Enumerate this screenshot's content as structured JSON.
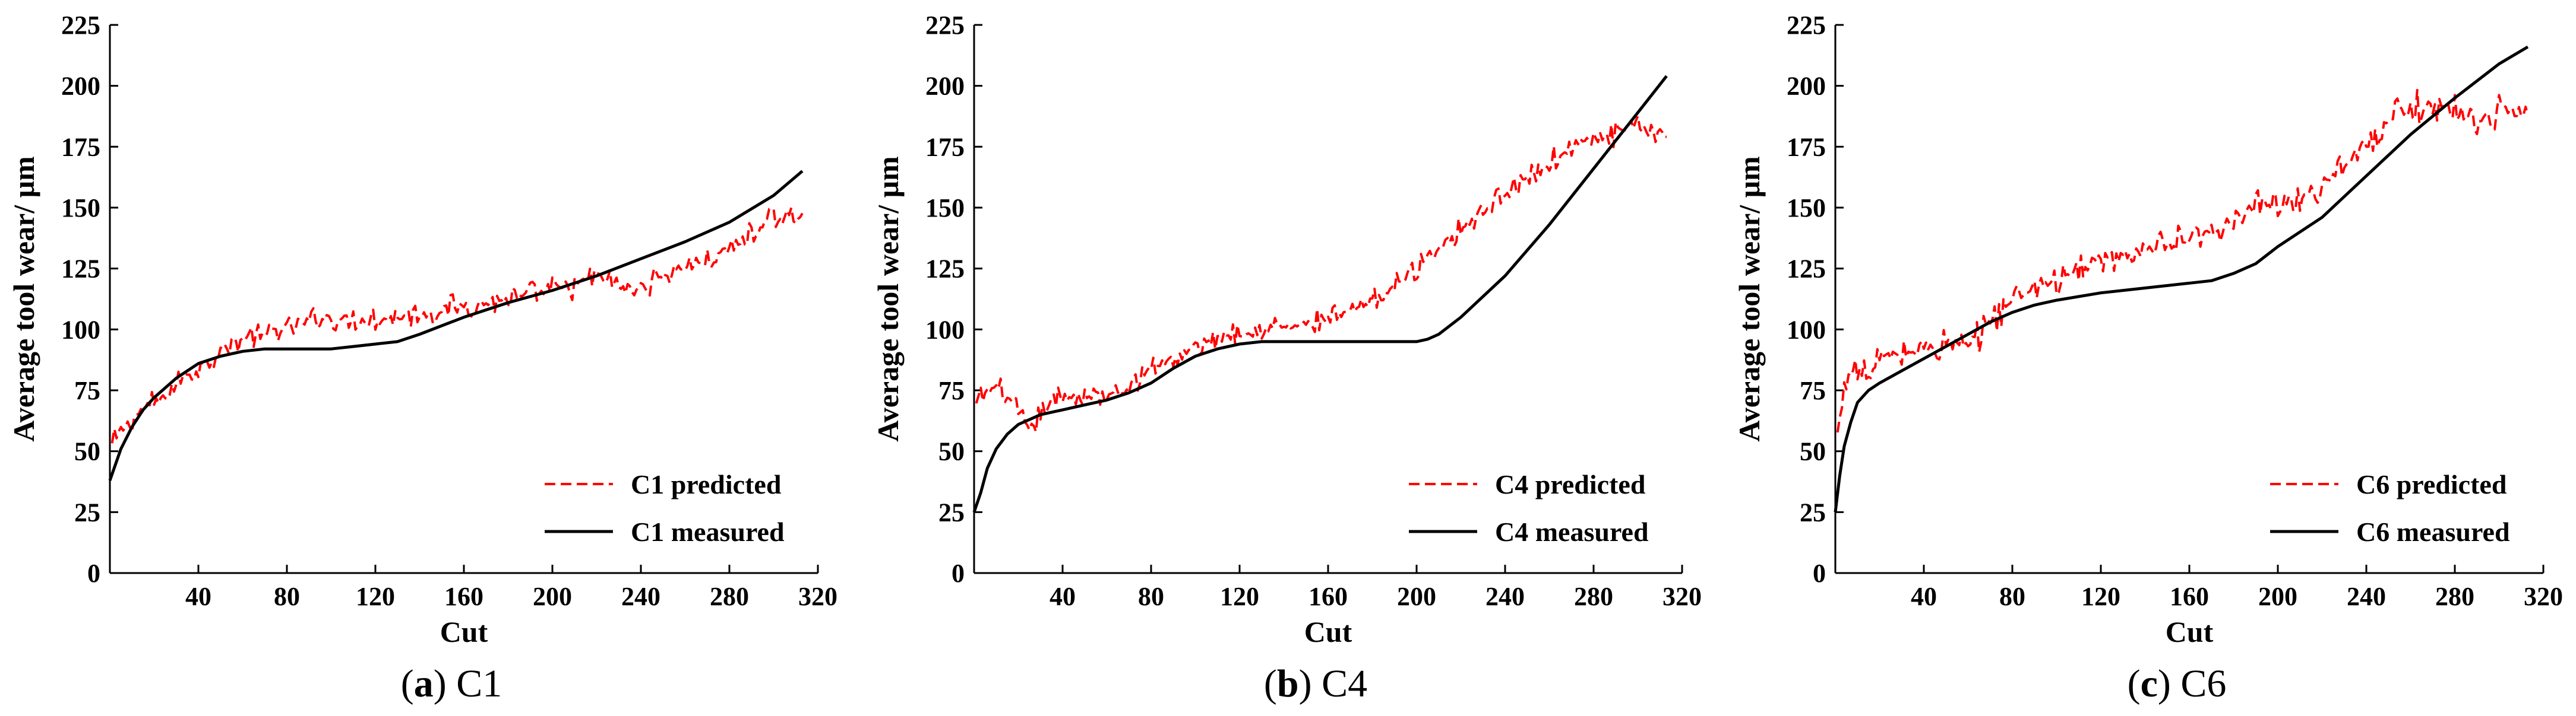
{
  "chart_data": [
    {
      "type": "line",
      "caption": {
        "letter": "a",
        "name": "C1"
      },
      "xlabel": "Cut",
      "ylabel": "Average tool wear/ μm",
      "xlim": [
        0,
        320
      ],
      "ylim": [
        0,
        225
      ],
      "xticks": [
        40,
        80,
        120,
        160,
        200,
        240,
        280,
        320
      ],
      "yticks": [
        0,
        25,
        50,
        75,
        100,
        125,
        150,
        175,
        200,
        225
      ],
      "legend_position": "bottom-right",
      "series": [
        {
          "name": "C1 predicted",
          "style": "dashed",
          "color": "#ff0000",
          "noise": 6,
          "points": [
            [
              1,
              52
            ],
            [
              5,
              58
            ],
            [
              10,
              63
            ],
            [
              15,
              67
            ],
            [
              20,
              70
            ],
            [
              25,
              72
            ],
            [
              30,
              78
            ],
            [
              35,
              82
            ],
            [
              40,
              84
            ],
            [
              45,
              88
            ],
            [
              50,
              92
            ],
            [
              55,
              93
            ],
            [
              60,
              96
            ],
            [
              65,
              98
            ],
            [
              70,
              98
            ],
            [
              75,
              99
            ],
            [
              80,
              101
            ],
            [
              90,
              103
            ],
            [
              100,
              105
            ],
            [
              110,
              104
            ],
            [
              120,
              104
            ],
            [
              130,
              105
            ],
            [
              140,
              106
            ],
            [
              150,
              108
            ],
            [
              160,
              110
            ],
            [
              170,
              111
            ],
            [
              180,
              112
            ],
            [
              190,
              114
            ],
            [
              200,
              116
            ],
            [
              210,
              118
            ],
            [
              220,
              122
            ],
            [
              230,
              118
            ],
            [
              235,
              115
            ],
            [
              240,
              118
            ],
            [
              250,
              122
            ],
            [
              260,
              126
            ],
            [
              270,
              128
            ],
            [
              280,
              133
            ],
            [
              290,
              139
            ],
            [
              300,
              145
            ],
            [
              310,
              145
            ],
            [
              313,
              148
            ]
          ]
        },
        {
          "name": "C1 measured",
          "style": "solid",
          "color": "#000000",
          "points": [
            [
              0,
              38
            ],
            [
              5,
              51
            ],
            [
              10,
              60
            ],
            [
              15,
              67
            ],
            [
              20,
              72
            ],
            [
              30,
              80
            ],
            [
              40,
              86
            ],
            [
              50,
              89
            ],
            [
              60,
              91
            ],
            [
              70,
              92
            ],
            [
              80,
              92
            ],
            [
              90,
              92
            ],
            [
              100,
              92
            ],
            [
              110,
              93
            ],
            [
              120,
              94
            ],
            [
              130,
              95
            ],
            [
              140,
              98
            ],
            [
              160,
              105
            ],
            [
              180,
              111
            ],
            [
              200,
              116
            ],
            [
              220,
              122
            ],
            [
              240,
              129
            ],
            [
              260,
              136
            ],
            [
              280,
              144
            ],
            [
              300,
              155
            ],
            [
              313,
              165
            ]
          ]
        }
      ]
    },
    {
      "type": "line",
      "caption": {
        "letter": "b",
        "name": "C4"
      },
      "xlabel": "Cut",
      "ylabel": "Average tool wear/ μm",
      "xlim": [
        0,
        320
      ],
      "ylim": [
        0,
        225
      ],
      "xticks": [
        40,
        80,
        120,
        160,
        200,
        240,
        280,
        320
      ],
      "yticks": [
        0,
        25,
        50,
        75,
        100,
        125,
        150,
        175,
        200,
        225
      ],
      "legend_position": "bottom-right",
      "series": [
        {
          "name": "C4 predicted",
          "style": "dashed",
          "color": "#ff0000",
          "noise": 6,
          "points": [
            [
              1,
              68
            ],
            [
              5,
              74
            ],
            [
              10,
              76
            ],
            [
              15,
              72
            ],
            [
              20,
              66
            ],
            [
              25,
              58
            ],
            [
              30,
              65
            ],
            [
              35,
              70
            ],
            [
              40,
              72
            ],
            [
              50,
              73
            ],
            [
              60,
              72
            ],
            [
              70,
              75
            ],
            [
              80,
              85
            ],
            [
              90,
              88
            ],
            [
              100,
              92
            ],
            [
              110,
              97
            ],
            [
              120,
              99
            ],
            [
              130,
              100
            ],
            [
              140,
              101
            ],
            [
              150,
              102
            ],
            [
              160,
              104
            ],
            [
              170,
              107
            ],
            [
              180,
              111
            ],
            [
              190,
              117
            ],
            [
              200,
              126
            ],
            [
              210,
              134
            ],
            [
              220,
              142
            ],
            [
              230,
              148
            ],
            [
              240,
              156
            ],
            [
              250,
              162
            ],
            [
              260,
              168
            ],
            [
              270,
              175
            ],
            [
              280,
              178
            ],
            [
              290,
              180
            ],
            [
              300,
              183
            ],
            [
              313,
              180
            ]
          ]
        },
        {
          "name": "C4 measured",
          "style": "solid",
          "color": "#000000",
          "points": [
            [
              0,
              25
            ],
            [
              3,
              33
            ],
            [
              6,
              43
            ],
            [
              10,
              51
            ],
            [
              15,
              57
            ],
            [
              20,
              61
            ],
            [
              30,
              65
            ],
            [
              40,
              67
            ],
            [
              50,
              69
            ],
            [
              60,
              71
            ],
            [
              70,
              74
            ],
            [
              80,
              78
            ],
            [
              90,
              84
            ],
            [
              100,
              89
            ],
            [
              110,
              92
            ],
            [
              120,
              94
            ],
            [
              130,
              95
            ],
            [
              140,
              95
            ],
            [
              160,
              95
            ],
            [
              180,
              95
            ],
            [
              195,
              95
            ],
            [
              200,
              95
            ],
            [
              205,
              96
            ],
            [
              210,
              98
            ],
            [
              220,
              105
            ],
            [
              240,
              122
            ],
            [
              260,
              143
            ],
            [
              280,
              166
            ],
            [
              300,
              189
            ],
            [
              313,
              204
            ]
          ]
        }
      ]
    },
    {
      "type": "line",
      "caption": {
        "letter": "c",
        "name": "C6"
      },
      "xlabel": "Cut",
      "ylabel": "Average tool wear/ μm",
      "xlim": [
        0,
        320
      ],
      "ylim": [
        0,
        225
      ],
      "xticks": [
        40,
        80,
        120,
        160,
        200,
        240,
        280,
        320
      ],
      "yticks": [
        0,
        25,
        50,
        75,
        100,
        125,
        150,
        175,
        200,
        225
      ],
      "legend_position": "bottom-right",
      "series": [
        {
          "name": "C6 predicted",
          "style": "dashed",
          "color": "#ff0000",
          "noise": 8,
          "points": [
            [
              1,
              55
            ],
            [
              3,
              70
            ],
            [
              6,
              82
            ],
            [
              10,
              84
            ],
            [
              15,
              80
            ],
            [
              20,
              88
            ],
            [
              30,
              90
            ],
            [
              40,
              92
            ],
            [
              50,
              95
            ],
            [
              60,
              92
            ],
            [
              70,
              104
            ],
            [
              80,
              112
            ],
            [
              90,
              118
            ],
            [
              100,
              120
            ],
            [
              110,
              124
            ],
            [
              120,
              128
            ],
            [
              130,
              130
            ],
            [
              140,
              132
            ],
            [
              150,
              134
            ],
            [
              160,
              136
            ],
            [
              170,
              140
            ],
            [
              180,
              146
            ],
            [
              190,
              150
            ],
            [
              200,
              152
            ],
            [
              210,
              154
            ],
            [
              220,
              160
            ],
            [
              230,
              168
            ],
            [
              240,
              176
            ],
            [
              250,
              185
            ],
            [
              260,
              190
            ],
            [
              270,
              192
            ],
            [
              280,
              190
            ],
            [
              290,
              186
            ],
            [
              300,
              190
            ],
            [
              313,
              190
            ]
          ]
        },
        {
          "name": "C6 measured",
          "style": "solid",
          "color": "#000000",
          "points": [
            [
              0,
              25
            ],
            [
              2,
              40
            ],
            [
              4,
              52
            ],
            [
              7,
              62
            ],
            [
              10,
              70
            ],
            [
              15,
              75
            ],
            [
              20,
              78
            ],
            [
              30,
              83
            ],
            [
              40,
              88
            ],
            [
              50,
              93
            ],
            [
              60,
              98
            ],
            [
              70,
              103
            ],
            [
              80,
              107
            ],
            [
              90,
              110
            ],
            [
              100,
              112
            ],
            [
              120,
              115
            ],
            [
              140,
              117
            ],
            [
              160,
              119
            ],
            [
              170,
              120
            ],
            [
              180,
              123
            ],
            [
              190,
              127
            ],
            [
              200,
              134
            ],
            [
              220,
              146
            ],
            [
              240,
              163
            ],
            [
              260,
              180
            ],
            [
              280,
              195
            ],
            [
              300,
              209
            ],
            [
              313,
              216
            ]
          ]
        }
      ]
    }
  ]
}
